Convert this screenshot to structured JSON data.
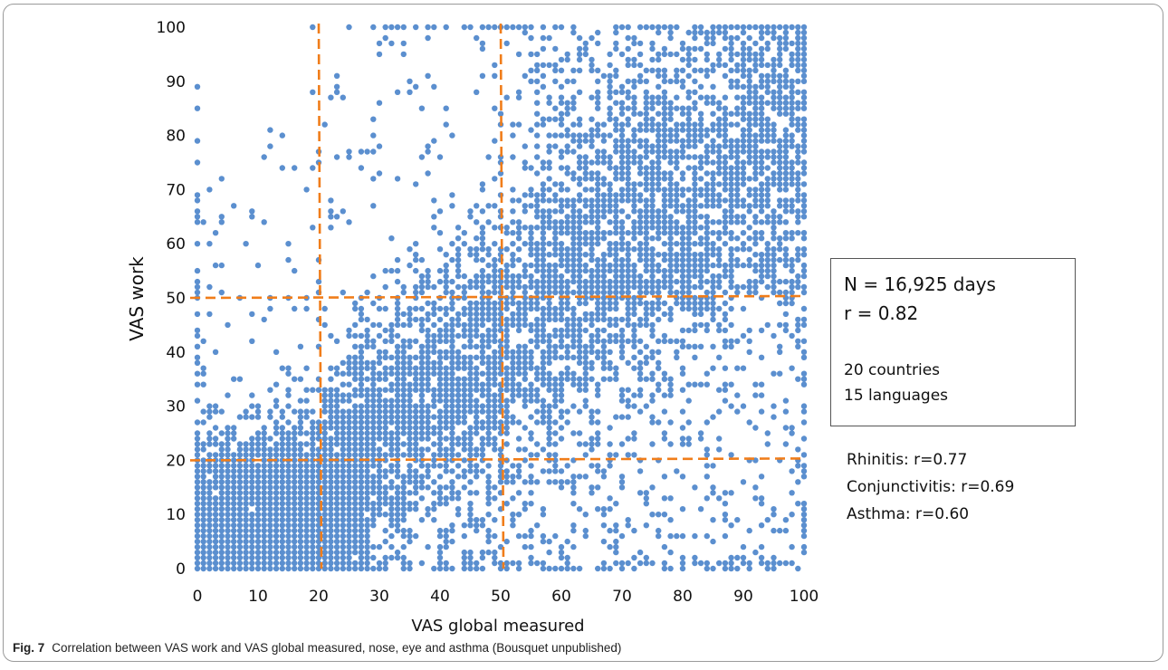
{
  "chart_data": {
    "type": "scatter",
    "title": "",
    "xlabel": "VAS global measured",
    "ylabel": "VAS work",
    "xlim": [
      0,
      100
    ],
    "ylim": [
      0,
      100
    ],
    "x_ticks": [
      "0",
      "10",
      "20",
      "30",
      "40",
      "50",
      "60",
      "70",
      "80",
      "90",
      "100"
    ],
    "y_ticks": [
      "0",
      "10",
      "20",
      "30",
      "40",
      "50",
      "60",
      "70",
      "80",
      "90",
      "100"
    ],
    "point_color": "#5b8fcf",
    "reference_line_color": "#f07d1a",
    "reference_lines": {
      "x": [
        20,
        50
      ],
      "y": [
        20,
        50
      ]
    },
    "grid": false,
    "n_points": 16925,
    "r": 0.82,
    "annotations": {
      "box_line1": "N = 16,925 days",
      "box_line2": "r = 0.82",
      "box_line3": "20 countries",
      "box_line4": "15 languages",
      "rhinitis": "Rhinitis: r=0.77",
      "conjunctivitis": "Conjunctivitis: r=0.69",
      "asthma": "Asthma: r=0.60"
    }
  },
  "caption": {
    "label": "Fig. 7",
    "text": "Correlation between VAS work and VAS global measured, nose, eye and asthma (Bousquet unpublished)"
  }
}
